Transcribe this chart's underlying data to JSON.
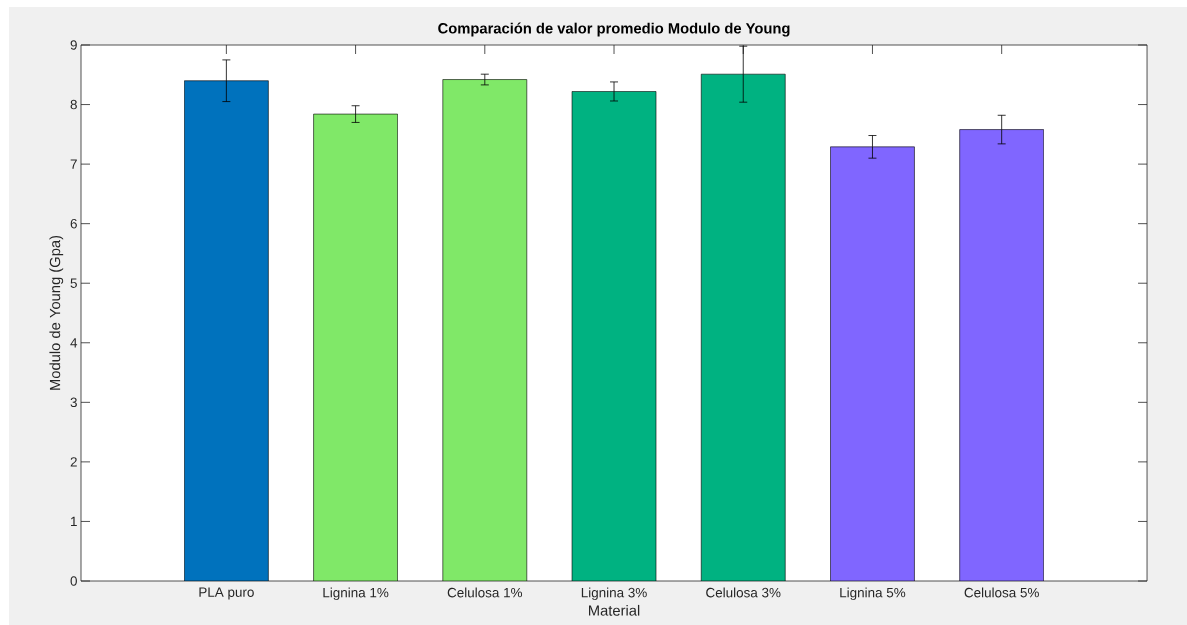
{
  "chart_data": {
    "type": "bar",
    "title": "Comparación de valor promedio Modulo de Young",
    "xlabel": "Material",
    "ylabel": "Modulo de Young (Gpa)",
    "categories": [
      "PLA puro",
      "Lignina 1%",
      "Celulosa 1%",
      "Lignina 3%",
      "Celulosa 3%",
      "Lignina 5%",
      "Celulosa 5%"
    ],
    "values": [
      8.4,
      7.84,
      8.42,
      8.22,
      8.51,
      7.29,
      7.58
    ],
    "errors": [
      0.35,
      0.14,
      0.09,
      0.16,
      0.47,
      0.19,
      0.24
    ],
    "colors": [
      "#0072bd",
      "#80e868",
      "#80e868",
      "#00b281",
      "#00b281",
      "#8066ff",
      "#8066ff"
    ],
    "ylim": [
      0,
      9
    ],
    "yticks": [
      0,
      1,
      2,
      3,
      4,
      5,
      6,
      7,
      8,
      9
    ]
  }
}
